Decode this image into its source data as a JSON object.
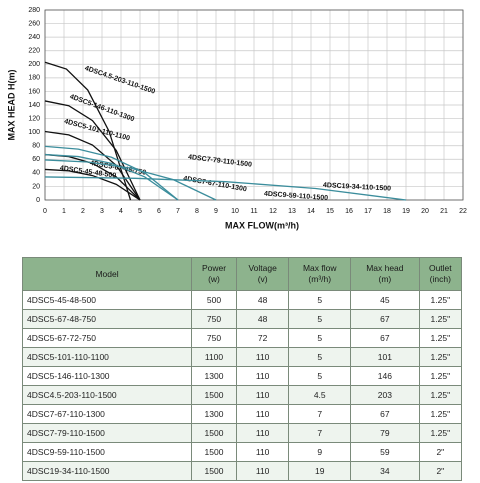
{
  "chart_data": {
    "type": "line",
    "x_label": "MAX FLOW(m³/h)",
    "y_label": "MAX HEAD H(m)",
    "xlim": [
      0,
      22
    ],
    "ylim": [
      0,
      280
    ],
    "xticks": [
      0,
      1,
      2,
      3,
      4,
      5,
      6,
      7,
      8,
      9,
      10,
      11,
      12,
      13,
      14,
      15,
      16,
      17,
      18,
      19,
      20,
      21,
      22
    ],
    "yticks": [
      0,
      20,
      40,
      60,
      80,
      100,
      120,
      140,
      160,
      180,
      200,
      220,
      240,
      260,
      280
    ],
    "grid": true,
    "series": [
      {
        "name": "4DSC4.5-203-110-1500",
        "color": "#111111",
        "x": [
          0,
          1.125,
          2.25,
          3.375,
          4.5
        ],
        "values": [
          203,
          193,
          162,
          101,
          0
        ]
      },
      {
        "name": "4DSC5-146-110-1300",
        "color": "#111111",
        "x": [
          0,
          1.25,
          2.5,
          3.75,
          5
        ],
        "values": [
          146,
          139,
          117,
          73,
          0
        ]
      },
      {
        "name": "4DSC5-101-110-1100",
        "color": "#111111",
        "x": [
          0,
          1.25,
          2.5,
          3.75,
          5
        ],
        "values": [
          101,
          96,
          81,
          51,
          0
        ]
      },
      {
        "name": "4DSC5-67-48-750",
        "color": "#111111",
        "x": [
          0,
          1.25,
          2.5,
          3.75,
          5
        ],
        "values": [
          67,
          64,
          54,
          34,
          0
        ]
      },
      {
        "name": "4DSC5-45-48-500",
        "color": "#111111",
        "x": [
          0,
          1.25,
          2.5,
          3.75,
          5
        ],
        "values": [
          45,
          43,
          36,
          23,
          0
        ]
      },
      {
        "name": "4DSC7-79-110-1500",
        "color": "#3b8d9c",
        "x": [
          0,
          1.75,
          3.5,
          5.25,
          7
        ],
        "values": [
          79,
          75,
          63,
          40,
          0
        ]
      },
      {
        "name": "4DSC7-67-110-1300",
        "color": "#3b8d9c",
        "x": [
          0,
          1.75,
          3.5,
          5.25,
          7
        ],
        "values": [
          67,
          64,
          54,
          34,
          0
        ]
      },
      {
        "name": "4DSC9-59-110-1500",
        "color": "#3b8d9c",
        "x": [
          0,
          2.25,
          4.5,
          6.75,
          9
        ],
        "values": [
          59,
          56,
          47,
          30,
          0
        ]
      },
      {
        "name": "4DSC19-34-110-1500",
        "color": "#3b8d9c",
        "x": [
          0,
          4.75,
          9.5,
          14.25,
          19
        ],
        "values": [
          34,
          32,
          27,
          17,
          0
        ]
      }
    ]
  },
  "table": {
    "header": [
      "Model",
      "Power\n(w)",
      "Voltage\n(v)",
      "Max flow\n(m³/h)",
      "Max head\n(m)",
      "Outlet\n(inch)"
    ],
    "rows": [
      [
        "4DSC5-45-48-500",
        "500",
        "48",
        "5",
        "45",
        "1.25\""
      ],
      [
        "4DSC5-67-48-750",
        "750",
        "48",
        "5",
        "67",
        "1.25\""
      ],
      [
        "4DSC5-67-72-750",
        "750",
        "72",
        "5",
        "67",
        "1.25\""
      ],
      [
        "4DSC5-101-110-1100",
        "1100",
        "110",
        "5",
        "101",
        "1.25\""
      ],
      [
        "4DSC5-146-110-1300",
        "1300",
        "110",
        "5",
        "146",
        "1.25\""
      ],
      [
        "4DSC4.5-203-110-1500",
        "1500",
        "110",
        "4.5",
        "203",
        "1.25\""
      ],
      [
        "4DSC7-67-110-1300",
        "1300",
        "110",
        "7",
        "67",
        "1.25\""
      ],
      [
        "4DSC7-79-110-1500",
        "1500",
        "110",
        "7",
        "79",
        "1.25\""
      ],
      [
        "4DSC9-59-110-1500",
        "1500",
        "110",
        "9",
        "59",
        "2\""
      ],
      [
        "4DSC19-34-110-1500",
        "1500",
        "110",
        "19",
        "34",
        "2\""
      ]
    ]
  }
}
